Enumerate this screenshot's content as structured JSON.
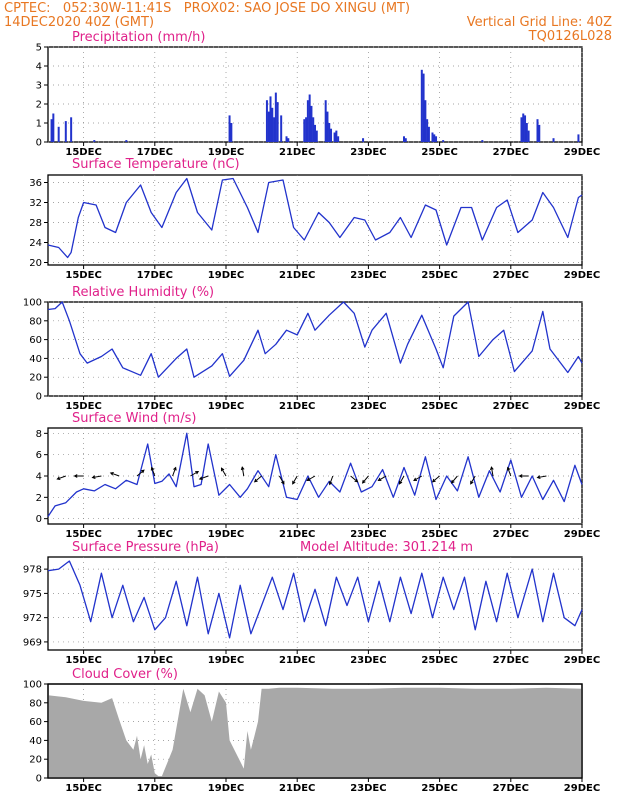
{
  "header": {
    "line1_left": "CPTEC:   052:30W-11:41S   PROX02: SAO JOSE DO XINGU (MT)",
    "line2_left": "14DEC2020 40Z (GMT)",
    "line2_right": "Vertical Grid Line: 40Z",
    "line3_right": "TQ0126L028"
  },
  "colors": {
    "line": "#2233cc",
    "title": "#e0218a",
    "header": "#e87722",
    "cloud": "#a8a8a8"
  },
  "x_tick_labels": [
    "15DEC",
    "17DEC",
    "19DEC",
    "21DEC",
    "23DEC",
    "25DEC",
    "27DEC",
    "29DEC"
  ],
  "chart_data": [
    {
      "type": "bar",
      "title": "Precipitation (mm/h)",
      "ylim": [
        0,
        5
      ],
      "yticks": [
        0,
        1,
        2,
        3,
        4,
        5
      ],
      "x_range_days": [
        14.0,
        29.0
      ],
      "events": [
        {
          "day": 14.1,
          "value": 1.2
        },
        {
          "day": 14.15,
          "value": 1.5
        },
        {
          "day": 14.3,
          "value": 0.8
        },
        {
          "day": 14.5,
          "value": 1.1
        },
        {
          "day": 14.65,
          "value": 1.3
        },
        {
          "day": 15.3,
          "value": 0.1
        },
        {
          "day": 16.2,
          "value": 0.1
        },
        {
          "day": 19.1,
          "value": 1.4
        },
        {
          "day": 19.15,
          "value": 1.0
        },
        {
          "day": 20.15,
          "value": 2.2
        },
        {
          "day": 20.2,
          "value": 1.6
        },
        {
          "day": 20.25,
          "value": 2.4
        },
        {
          "day": 20.3,
          "value": 1.8
        },
        {
          "day": 20.35,
          "value": 1.3
        },
        {
          "day": 20.4,
          "value": 2.6
        },
        {
          "day": 20.45,
          "value": 2.1
        },
        {
          "day": 20.55,
          "value": 1.4
        },
        {
          "day": 20.7,
          "value": 0.3
        },
        {
          "day": 20.75,
          "value": 0.2
        },
        {
          "day": 21.2,
          "value": 1.2
        },
        {
          "day": 21.25,
          "value": 1.3
        },
        {
          "day": 21.3,
          "value": 2.2
        },
        {
          "day": 21.35,
          "value": 2.5
        },
        {
          "day": 21.4,
          "value": 1.9
        },
        {
          "day": 21.45,
          "value": 1.3
        },
        {
          "day": 21.5,
          "value": 0.9
        },
        {
          "day": 21.55,
          "value": 0.6
        },
        {
          "day": 21.8,
          "value": 2.2
        },
        {
          "day": 21.85,
          "value": 1.6
        },
        {
          "day": 21.9,
          "value": 1.0
        },
        {
          "day": 21.95,
          "value": 0.7
        },
        {
          "day": 22.05,
          "value": 0.5
        },
        {
          "day": 22.1,
          "value": 0.6
        },
        {
          "day": 22.15,
          "value": 0.3
        },
        {
          "day": 22.85,
          "value": 0.2
        },
        {
          "day": 24.0,
          "value": 0.3
        },
        {
          "day": 24.05,
          "value": 0.2
        },
        {
          "day": 24.5,
          "value": 3.8
        },
        {
          "day": 24.55,
          "value": 3.6
        },
        {
          "day": 24.6,
          "value": 2.2
        },
        {
          "day": 24.65,
          "value": 1.2
        },
        {
          "day": 24.7,
          "value": 0.8
        },
        {
          "day": 24.8,
          "value": 0.5
        },
        {
          "day": 24.85,
          "value": 0.4
        },
        {
          "day": 24.9,
          "value": 0.3
        },
        {
          "day": 25.1,
          "value": 0.1
        },
        {
          "day": 26.2,
          "value": 0.1
        },
        {
          "day": 27.3,
          "value": 1.3
        },
        {
          "day": 27.35,
          "value": 1.5
        },
        {
          "day": 27.4,
          "value": 1.4
        },
        {
          "day": 27.45,
          "value": 1.0
        },
        {
          "day": 27.5,
          "value": 0.6
        },
        {
          "day": 27.75,
          "value": 1.2
        },
        {
          "day": 27.8,
          "value": 0.9
        },
        {
          "day": 28.2,
          "value": 0.2
        },
        {
          "day": 28.9,
          "value": 0.4
        }
      ]
    },
    {
      "type": "line",
      "title": "Surface Temperature (nC)",
      "ylim": [
        19.5,
        37.5
      ],
      "yticks": [
        20,
        24,
        28,
        32,
        36
      ],
      "x_range_days": [
        14.0,
        29.0
      ],
      "series": [
        {
          "x": [
            14.0,
            14.3,
            14.55,
            14.65,
            14.85,
            15.0,
            15.35,
            15.6,
            15.9,
            16.2,
            16.6,
            16.9,
            17.2,
            17.6,
            17.9,
            18.2,
            18.6,
            18.9,
            19.2,
            19.6,
            19.9,
            20.2,
            20.6,
            20.9,
            21.2,
            21.6,
            21.9,
            22.2,
            22.6,
            22.9,
            23.2,
            23.6,
            23.9,
            24.2,
            24.6,
            24.9,
            25.2,
            25.6,
            25.9,
            26.2,
            26.6,
            26.9,
            27.2,
            27.6,
            27.9,
            28.2,
            28.6,
            28.9,
            29.0
          ],
          "y": [
            23.5,
            23.0,
            21.0,
            22.0,
            29.0,
            32.0,
            31.5,
            27.0,
            26.0,
            32.0,
            35.5,
            30.0,
            27.0,
            34.0,
            36.8,
            30.0,
            26.5,
            36.5,
            36.8,
            31.0,
            26.0,
            36.0,
            36.5,
            27.0,
            24.5,
            30.0,
            28.0,
            25.0,
            29.0,
            28.5,
            24.5,
            26.0,
            29.0,
            25.0,
            31.5,
            30.5,
            23.5,
            31.0,
            31.0,
            24.5,
            31.0,
            32.5,
            26.0,
            28.5,
            34.0,
            31.0,
            25.0,
            33.0,
            33.5
          ]
        }
      ]
    },
    {
      "type": "line",
      "title": "Relative Humidity (%)",
      "ylim": [
        0,
        100
      ],
      "yticks": [
        0,
        20,
        40,
        60,
        80,
        100
      ],
      "x_range_days": [
        14.0,
        29.0
      ],
      "series": [
        {
          "x": [
            14.0,
            14.2,
            14.4,
            14.6,
            14.9,
            15.1,
            15.5,
            15.8,
            16.1,
            16.6,
            16.9,
            17.1,
            17.6,
            17.9,
            18.1,
            18.6,
            18.9,
            19.1,
            19.5,
            19.9,
            20.1,
            20.4,
            20.7,
            21.0,
            21.3,
            21.5,
            21.9,
            22.3,
            22.6,
            22.9,
            23.1,
            23.5,
            23.9,
            24.1,
            24.5,
            24.9,
            25.1,
            25.4,
            25.8,
            26.1,
            26.5,
            26.8,
            27.1,
            27.6,
            27.9,
            28.1,
            28.6,
            28.9,
            29.0
          ],
          "y": [
            92,
            93,
            100,
            80,
            45,
            35,
            42,
            50,
            30,
            22,
            45,
            20,
            40,
            50,
            20,
            32,
            45,
            21,
            38,
            70,
            45,
            55,
            70,
            65,
            88,
            70,
            86,
            100,
            88,
            52,
            70,
            88,
            35,
            55,
            86,
            50,
            30,
            85,
            100,
            42,
            60,
            70,
            26,
            48,
            90,
            50,
            25,
            42,
            35
          ]
        }
      ]
    },
    {
      "type": "line",
      "title": "Surface Wind (m/s)",
      "ylim": [
        -0.5,
        8.5
      ],
      "yticks": [
        0,
        2,
        4,
        6,
        8
      ],
      "x_range_days": [
        14.0,
        29.0
      ],
      "series": [
        {
          "x": [
            14.0,
            14.2,
            14.5,
            14.8,
            15.0,
            15.3,
            15.6,
            15.9,
            16.2,
            16.5,
            16.8,
            17.0,
            17.2,
            17.4,
            17.6,
            17.9,
            18.1,
            18.3,
            18.5,
            18.8,
            19.1,
            19.4,
            19.6,
            19.9,
            20.2,
            20.4,
            20.7,
            21.0,
            21.3,
            21.6,
            21.9,
            22.2,
            22.5,
            22.8,
            23.1,
            23.4,
            23.7,
            24.0,
            24.3,
            24.6,
            24.9,
            25.2,
            25.5,
            25.8,
            26.1,
            26.4,
            26.7,
            27.0,
            27.3,
            27.6,
            27.9,
            28.2,
            28.5,
            28.8,
            29.0
          ],
          "y": [
            0.2,
            1.2,
            1.5,
            2.5,
            2.8,
            2.6,
            3.2,
            2.8,
            3.6,
            3.2,
            7.0,
            3.3,
            3.5,
            4.2,
            3.0,
            8.0,
            3.0,
            3.2,
            7.0,
            2.2,
            3.2,
            2.0,
            2.8,
            4.5,
            3.0,
            6.0,
            2.0,
            1.8,
            4.0,
            2.0,
            3.5,
            2.5,
            5.2,
            2.5,
            3.0,
            4.6,
            2.0,
            4.8,
            2.2,
            5.8,
            1.8,
            4.0,
            2.6,
            5.8,
            2.0,
            4.5,
            2.5,
            5.5,
            2.0,
            4.0,
            1.8,
            3.6,
            1.6,
            5.0,
            3.2
          ]
        }
      ],
      "arrows_shown": true
    },
    {
      "type": "line",
      "title": "Surface Pressure (hPa)",
      "annotation": "Model Altitude: 301.214 m",
      "ylim": [
        968,
        979.5
      ],
      "yticks": [
        969,
        972,
        975,
        978
      ],
      "x_range_days": [
        14.0,
        29.0
      ],
      "series": [
        {
          "x": [
            14.0,
            14.3,
            14.6,
            14.9,
            15.2,
            15.5,
            15.8,
            16.1,
            16.4,
            16.7,
            17.0,
            17.3,
            17.6,
            17.9,
            18.2,
            18.5,
            18.8,
            19.1,
            19.4,
            19.7,
            20.0,
            20.3,
            20.6,
            20.9,
            21.2,
            21.5,
            21.8,
            22.1,
            22.4,
            22.7,
            23.0,
            23.3,
            23.6,
            23.9,
            24.2,
            24.5,
            24.8,
            25.1,
            25.4,
            25.7,
            26.0,
            26.3,
            26.6,
            26.9,
            27.2,
            27.6,
            27.9,
            28.2,
            28.5,
            28.8,
            29.0
          ],
          "y": [
            977.8,
            978.0,
            979.0,
            976.0,
            971.5,
            977.5,
            972.0,
            976.0,
            971.5,
            974.5,
            970.5,
            972.0,
            976.5,
            971.0,
            977.0,
            970.0,
            975.0,
            969.5,
            976.0,
            970.0,
            973.5,
            977.0,
            973.0,
            977.5,
            971.5,
            975.5,
            971.0,
            977.0,
            973.5,
            977.0,
            971.5,
            976.5,
            971.5,
            977.0,
            972.5,
            977.5,
            972.0,
            977.0,
            973.0,
            977.0,
            970.5,
            976.5,
            971.5,
            977.5,
            972.0,
            978.0,
            971.5,
            977.5,
            972.0,
            971.0,
            973.0
          ]
        }
      ]
    },
    {
      "type": "area",
      "title": "Cloud Cover (%)",
      "ylim": [
        0,
        100
      ],
      "yticks": [
        0,
        20,
        40,
        60,
        80,
        100
      ],
      "x_range_days": [
        14.0,
        29.0
      ],
      "series": [
        {
          "x": [
            14.0,
            14.5,
            15.0,
            15.5,
            15.8,
            16.0,
            16.2,
            16.4,
            16.5,
            16.6,
            16.7,
            16.8,
            16.9,
            17.0,
            17.1,
            17.2,
            17.5,
            17.8,
            18.0,
            18.2,
            18.4,
            18.6,
            18.8,
            19.0,
            19.1,
            19.3,
            19.5,
            19.6,
            19.7,
            19.8,
            19.9,
            20.0,
            20.2,
            20.5,
            21.0,
            22.0,
            23.0,
            24.0,
            25.0,
            26.0,
            27.0,
            28.0,
            29.0
          ],
          "y": [
            88,
            86,
            82,
            80,
            85,
            62,
            40,
            30,
            45,
            20,
            35,
            15,
            25,
            5,
            2,
            2,
            30,
            95,
            70,
            95,
            88,
            60,
            92,
            80,
            40,
            25,
            10,
            50,
            30,
            45,
            60,
            95,
            95,
            96,
            96,
            95,
            95,
            96,
            96,
            95,
            95,
            96,
            95
          ]
        }
      ]
    }
  ]
}
